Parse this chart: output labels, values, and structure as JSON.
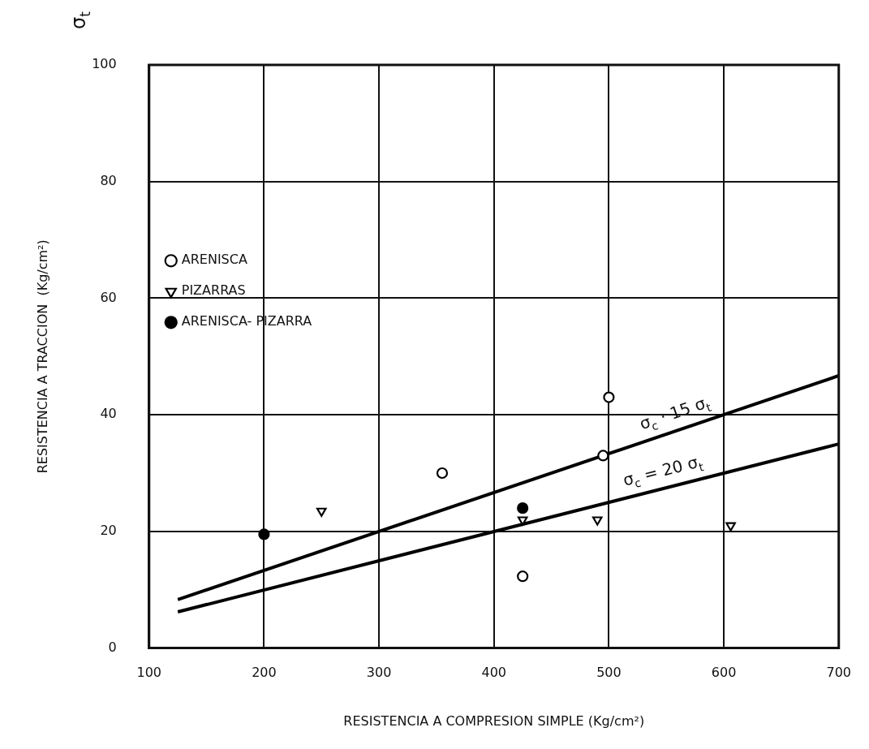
{
  "chart_data": {
    "type": "scatter",
    "xlabel": "RESISTENCIA A COMPRESION SIMPLE (Kg/cm²)",
    "ylabel": "RESISTENCIA A TRACCION  (Kg/cm²)",
    "xlim": [
      100,
      700
    ],
    "xticks": [
      100,
      200,
      300,
      400,
      500,
      600,
      700
    ],
    "ylim": [
      0,
      100
    ],
    "yticks": [
      0,
      20,
      40,
      60,
      80,
      100
    ],
    "grid": true,
    "legend": "top",
    "series": [
      {
        "name": "ARENISCA",
        "color": "#000000",
        "marker": "circle",
        "x": [
          355,
          500,
          495,
          425
        ],
        "values": [
          30,
          43,
          33,
          12.3
        ]
      },
      {
        "name": "PIZARRAS",
        "color": "#000000",
        "marker": "triangle",
        "x": [
          250,
          425,
          490,
          606
        ],
        "values": [
          23.5,
          22,
          22,
          21
        ]
      },
      {
        "name": "ARENISCA- PIZARRA",
        "color": "#000000",
        "marker": "circle",
        "x": [
          200,
          425
        ],
        "values": [
          19.5,
          24
        ]
      },
      {
        "type": "line",
        "color": "#000000",
        "marker": "none",
        "x": [
          125,
          700
        ],
        "values": [
          8.3,
          46.7
        ]
      },
      {
        "type": "line",
        "color": "#000000",
        "marker": "none",
        "x": [
          125,
          700
        ],
        "values": [
          6.2,
          35
        ]
      }
    ],
    "annotations": [
      "σ$_{t}$",
      "σ$_{c}$ · 15 σ$_{t}$",
      "σ$_{c}$ = 20 σ$_{t}$"
    ]
  }
}
